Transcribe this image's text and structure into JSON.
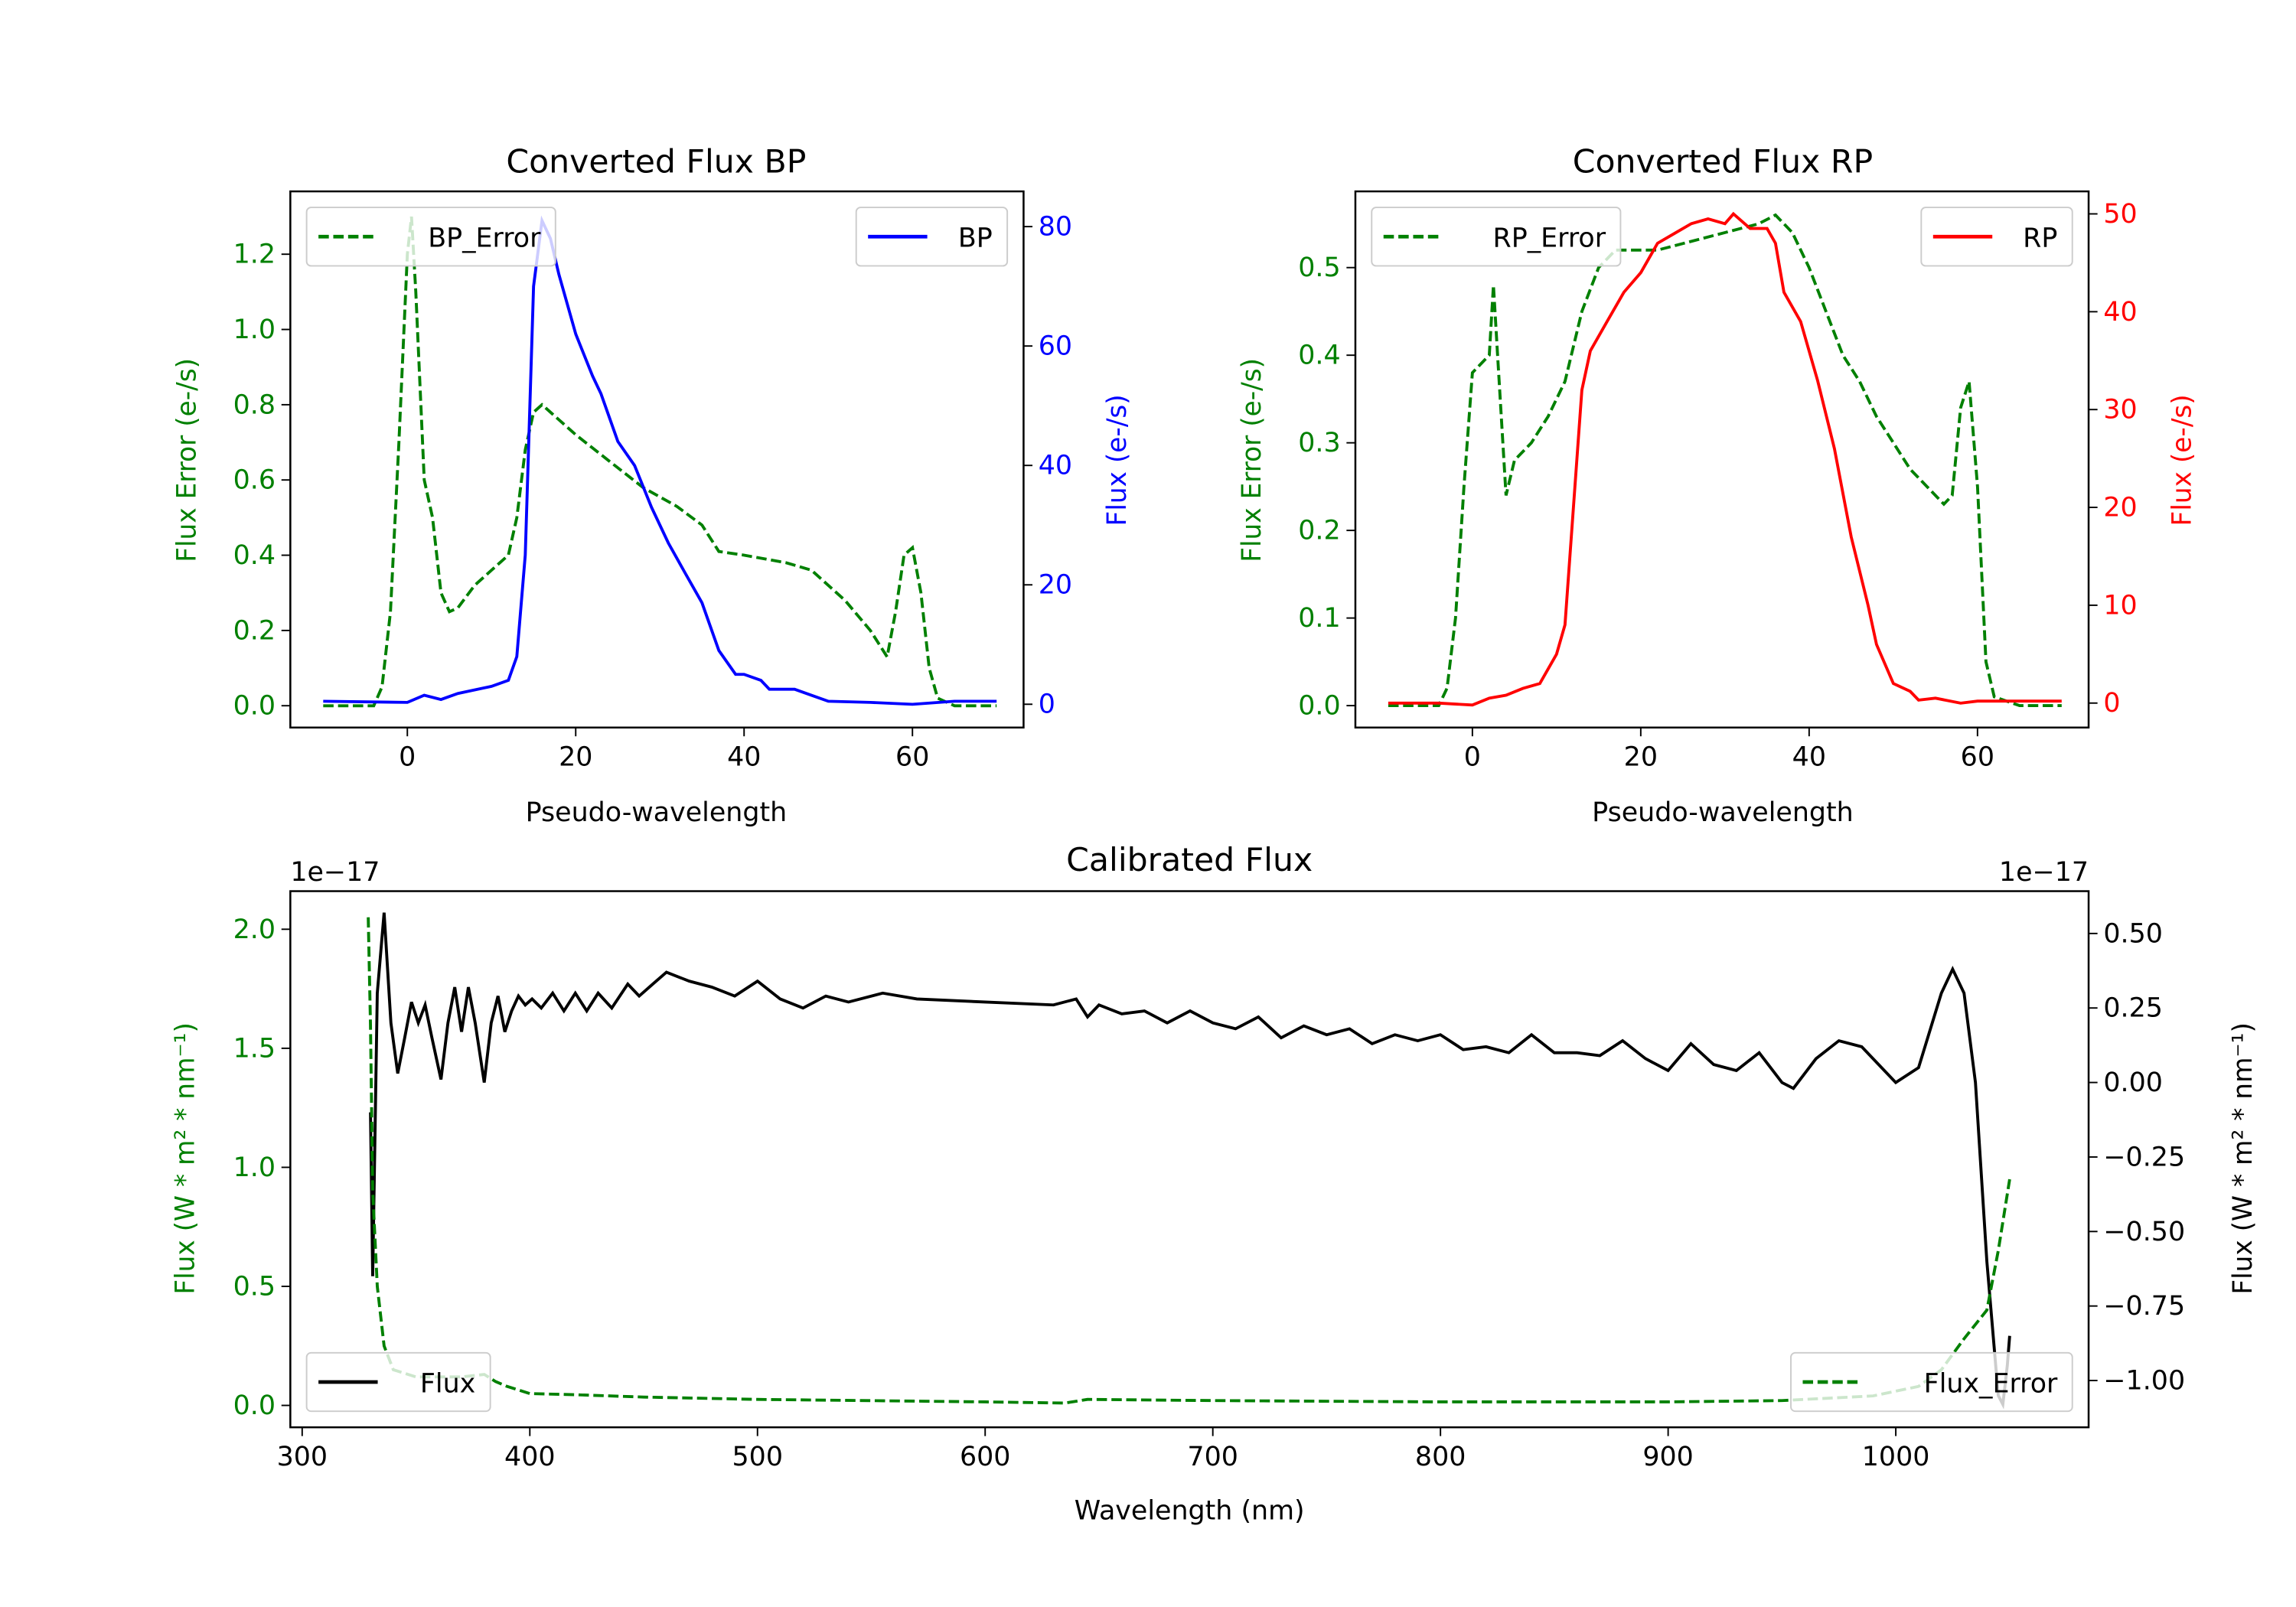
{
  "colors": {
    "bp": "#0000ff",
    "rp": "#ff0000",
    "error": "#008000",
    "flux": "#000000"
  },
  "chart_data": [
    {
      "type": "line",
      "title": "Converted Flux BP",
      "xlabel": "Pseudo-wavelength",
      "ylabel_left": "Flux Error (e-/s)",
      "ylabel_right": "Flux (e-/s)",
      "xlim": [
        -13.9,
        73.2
      ],
      "ylim_left": [
        -0.058,
        1.367
      ],
      "ylim_right": [
        -3.9,
        85.9
      ],
      "xticks": [
        0,
        20,
        40,
        60
      ],
      "yticks_left": [
        0.0,
        0.2,
        0.4,
        0.6,
        0.8,
        1.0,
        1.2
      ],
      "yticks_right": [
        0,
        20,
        40,
        60,
        80
      ],
      "legend_left": "BP_Error",
      "legend_right": "BP",
      "legend_positions": [
        "top-left",
        "top-right"
      ],
      "series": [
        {
          "name": "BP_Error",
          "axis": "left",
          "style": "dashed",
          "color": "#008000",
          "x": [
            -10,
            -4,
            -3,
            -2,
            -1,
            0,
            0.5,
            1,
            2,
            3,
            4,
            5,
            6,
            8,
            10,
            12,
            13,
            14,
            15,
            16,
            18,
            20,
            24,
            28,
            32,
            35,
            37,
            40,
            45,
            48,
            52,
            55,
            57,
            58,
            59,
            60,
            61,
            62,
            63,
            65,
            70
          ],
          "y": [
            0,
            0,
            0.05,
            0.25,
            0.7,
            1.2,
            1.3,
            1.1,
            0.6,
            0.5,
            0.3,
            0.25,
            0.26,
            0.32,
            0.36,
            0.4,
            0.5,
            0.68,
            0.78,
            0.8,
            0.76,
            0.72,
            0.65,
            0.58,
            0.53,
            0.48,
            0.41,
            0.4,
            0.38,
            0.36,
            0.28,
            0.2,
            0.13,
            0.25,
            0.4,
            0.42,
            0.3,
            0.1,
            0.02,
            0,
            0
          ]
        },
        {
          "name": "BP",
          "axis": "right",
          "style": "solid",
          "color": "#0000ff",
          "x": [
            -10,
            0,
            2,
            4,
            6,
            10,
            12,
            13,
            14,
            15,
            16,
            17,
            18,
            20,
            22,
            23,
            25,
            27,
            29,
            31,
            33,
            35,
            37,
            39,
            40,
            42,
            43,
            46,
            48,
            50,
            55,
            60,
            65,
            70
          ],
          "y": [
            0.5,
            0.3,
            1.5,
            0.8,
            1.8,
            3,
            4,
            8,
            25,
            70,
            81,
            78,
            72,
            62,
            55,
            52,
            44,
            40,
            33,
            27,
            22,
            17,
            9,
            5,
            5,
            4,
            2.5,
            2.5,
            1.5,
            0.5,
            0.3,
            0,
            0.5,
            0.5
          ]
        }
      ]
    },
    {
      "type": "line",
      "title": "Converted Flux RP",
      "xlabel": "Pseudo-wavelength",
      "ylabel_left": "Flux Error (e-/s)",
      "ylabel_right": "Flux (e-/s)",
      "xlim": [
        -13.9,
        73.2
      ],
      "ylim_left": [
        -0.025,
        0.587
      ],
      "ylim_right": [
        -2.5,
        52.3
      ],
      "xticks": [
        0,
        20,
        40,
        60
      ],
      "yticks_left": [
        0.0,
        0.1,
        0.2,
        0.3,
        0.4,
        0.5
      ],
      "yticks_right": [
        0,
        10,
        20,
        30,
        40,
        50
      ],
      "legend_left": "RP_Error",
      "legend_right": "RP",
      "legend_positions": [
        "top-left",
        "top-right"
      ],
      "series": [
        {
          "name": "RP_Error",
          "axis": "left",
          "style": "dashed",
          "color": "#008000",
          "x": [
            -10,
            -4,
            -3,
            -2,
            -1,
            0,
            1,
            2,
            2.5,
            3,
            4,
            5,
            7,
            9,
            11,
            13,
            15,
            17,
            20,
            22,
            26,
            30,
            34,
            36,
            38,
            40,
            42,
            44,
            46,
            48,
            50,
            52,
            54,
            56,
            57,
            58,
            59,
            60,
            61,
            62,
            65,
            70
          ],
          "y": [
            0,
            0,
            0.02,
            0.1,
            0.25,
            0.38,
            0.39,
            0.4,
            0.48,
            0.4,
            0.24,
            0.28,
            0.3,
            0.33,
            0.37,
            0.45,
            0.5,
            0.52,
            0.52,
            0.52,
            0.53,
            0.54,
            0.55,
            0.56,
            0.54,
            0.5,
            0.45,
            0.4,
            0.37,
            0.33,
            0.3,
            0.27,
            0.25,
            0.23,
            0.24,
            0.34,
            0.37,
            0.25,
            0.05,
            0.01,
            0,
            0
          ]
        },
        {
          "name": "RP",
          "axis": "right",
          "style": "solid",
          "color": "#ff0000",
          "x": [
            -10,
            -4,
            0,
            2,
            4,
            6,
            8,
            10,
            11,
            12,
            13,
            14,
            16,
            18,
            20,
            22,
            24,
            26,
            28,
            30,
            31,
            33,
            35,
            36,
            37,
            39,
            41,
            43,
            45,
            47,
            48,
            50,
            52,
            53,
            55,
            58,
            60,
            70
          ],
          "y": [
            0,
            0,
            -0.2,
            0.5,
            0.8,
            1.5,
            2,
            5,
            8,
            20,
            32,
            36,
            39,
            42,
            44,
            47,
            48,
            49,
            49.5,
            49,
            50,
            48.5,
            48.5,
            47,
            42,
            39,
            33,
            26,
            17,
            10,
            6,
            2,
            1.2,
            0.3,
            0.5,
            0,
            0.2,
            0.2
          ]
        }
      ]
    },
    {
      "type": "line",
      "title": "Calibrated Flux",
      "xlabel": "Wavelength (nm)",
      "ylabel_left": "Flux (W * m² * nm⁻¹)",
      "ylabel_right": "Flux (W * m² * nm⁻¹)",
      "offset_left": "1e−17",
      "offset_right": "1e−17",
      "xlim": [
        294.8,
        1084.7
      ],
      "ylim_left": [
        -0.092,
        2.16
      ],
      "ylim_right": [
        -1.157,
        0.642
      ],
      "xticks": [
        300,
        400,
        500,
        600,
        700,
        800,
        900,
        1000
      ],
      "yticks_left": [
        0.0,
        0.5,
        1.0,
        1.5,
        2.0
      ],
      "yticks_right": [
        -1.0,
        -0.75,
        -0.5,
        -0.25,
        0.0,
        0.25,
        0.5
      ],
      "yticks_right_labels": [
        "−1.00",
        "−0.75",
        "−0.50",
        "−0.25",
        "0.00",
        "0.25",
        "0.50"
      ],
      "legend_left": "Flux",
      "legend_right": "Flux_Error",
      "legend_positions": [
        "bottom-left",
        "bottom-right"
      ],
      "series": [
        {
          "name": "Flux",
          "axis": "right",
          "style": "solid",
          "color": "#000000",
          "x": [
            330,
            331,
            333,
            336,
            339,
            342,
            345,
            348,
            351,
            354,
            357,
            361,
            364,
            367,
            370,
            373,
            376,
            380,
            383,
            386,
            389,
            392,
            395,
            398,
            401,
            405,
            410,
            415,
            420,
            425,
            430,
            436,
            443,
            448,
            454,
            460,
            470,
            480,
            490,
            500,
            510,
            520,
            530,
            540,
            555,
            570,
            600,
            630,
            640,
            645,
            650,
            660,
            670,
            680,
            690,
            700,
            710,
            720,
            730,
            740,
            750,
            760,
            770,
            780,
            790,
            800,
            810,
            820,
            830,
            840,
            850,
            860,
            870,
            880,
            890,
            900,
            910,
            920,
            930,
            940,
            950,
            955,
            965,
            975,
            985,
            1000,
            1010,
            1020,
            1025,
            1030,
            1035,
            1040,
            1045,
            1047,
            1049,
            1050
          ],
          "y": [
            -0.1,
            -0.65,
            0.3,
            0.57,
            0.2,
            0.03,
            0.15,
            0.27,
            0.2,
            0.26,
            0.15,
            0.01,
            0.2,
            0.32,
            0.17,
            0.32,
            0.2,
            0.0,
            0.2,
            0.29,
            0.17,
            0.24,
            0.29,
            0.26,
            0.28,
            0.25,
            0.3,
            0.24,
            0.3,
            0.24,
            0.3,
            0.25,
            0.33,
            0.29,
            0.33,
            0.37,
            0.34,
            0.32,
            0.29,
            0.34,
            0.28,
            0.25,
            0.29,
            0.27,
            0.3,
            0.28,
            0.27,
            0.26,
            0.28,
            0.22,
            0.26,
            0.23,
            0.24,
            0.2,
            0.24,
            0.2,
            0.18,
            0.22,
            0.15,
            0.19,
            0.16,
            0.18,
            0.13,
            0.16,
            0.14,
            0.16,
            0.11,
            0.12,
            0.1,
            0.16,
            0.1,
            0.1,
            0.09,
            0.14,
            0.08,
            0.04,
            0.13,
            0.06,
            0.04,
            0.1,
            0.0,
            -0.02,
            0.08,
            0.14,
            0.12,
            0.0,
            0.05,
            0.3,
            0.38,
            0.3,
            0.0,
            -0.6,
            -1.05,
            -1.08,
            -0.95,
            -0.85
          ]
        },
        {
          "name": "Flux_Error",
          "axis": "left",
          "style": "dashed",
          "color": "#008000",
          "x": [
            329,
            330,
            331,
            333,
            336,
            340,
            350,
            370,
            380,
            385,
            390,
            400,
            420,
            450,
            500,
            600,
            635,
            645,
            700,
            800,
            900,
            950,
            990,
            1010,
            1020,
            1030,
            1040,
            1045,
            1050
          ],
          "y": [
            2.05,
            1.6,
            0.9,
            0.5,
            0.25,
            0.15,
            0.12,
            0.12,
            0.13,
            0.1,
            0.08,
            0.05,
            0.045,
            0.035,
            0.025,
            0.015,
            0.01,
            0.025,
            0.02,
            0.015,
            0.015,
            0.02,
            0.04,
            0.08,
            0.15,
            0.28,
            0.4,
            0.65,
            0.95
          ]
        }
      ]
    }
  ]
}
